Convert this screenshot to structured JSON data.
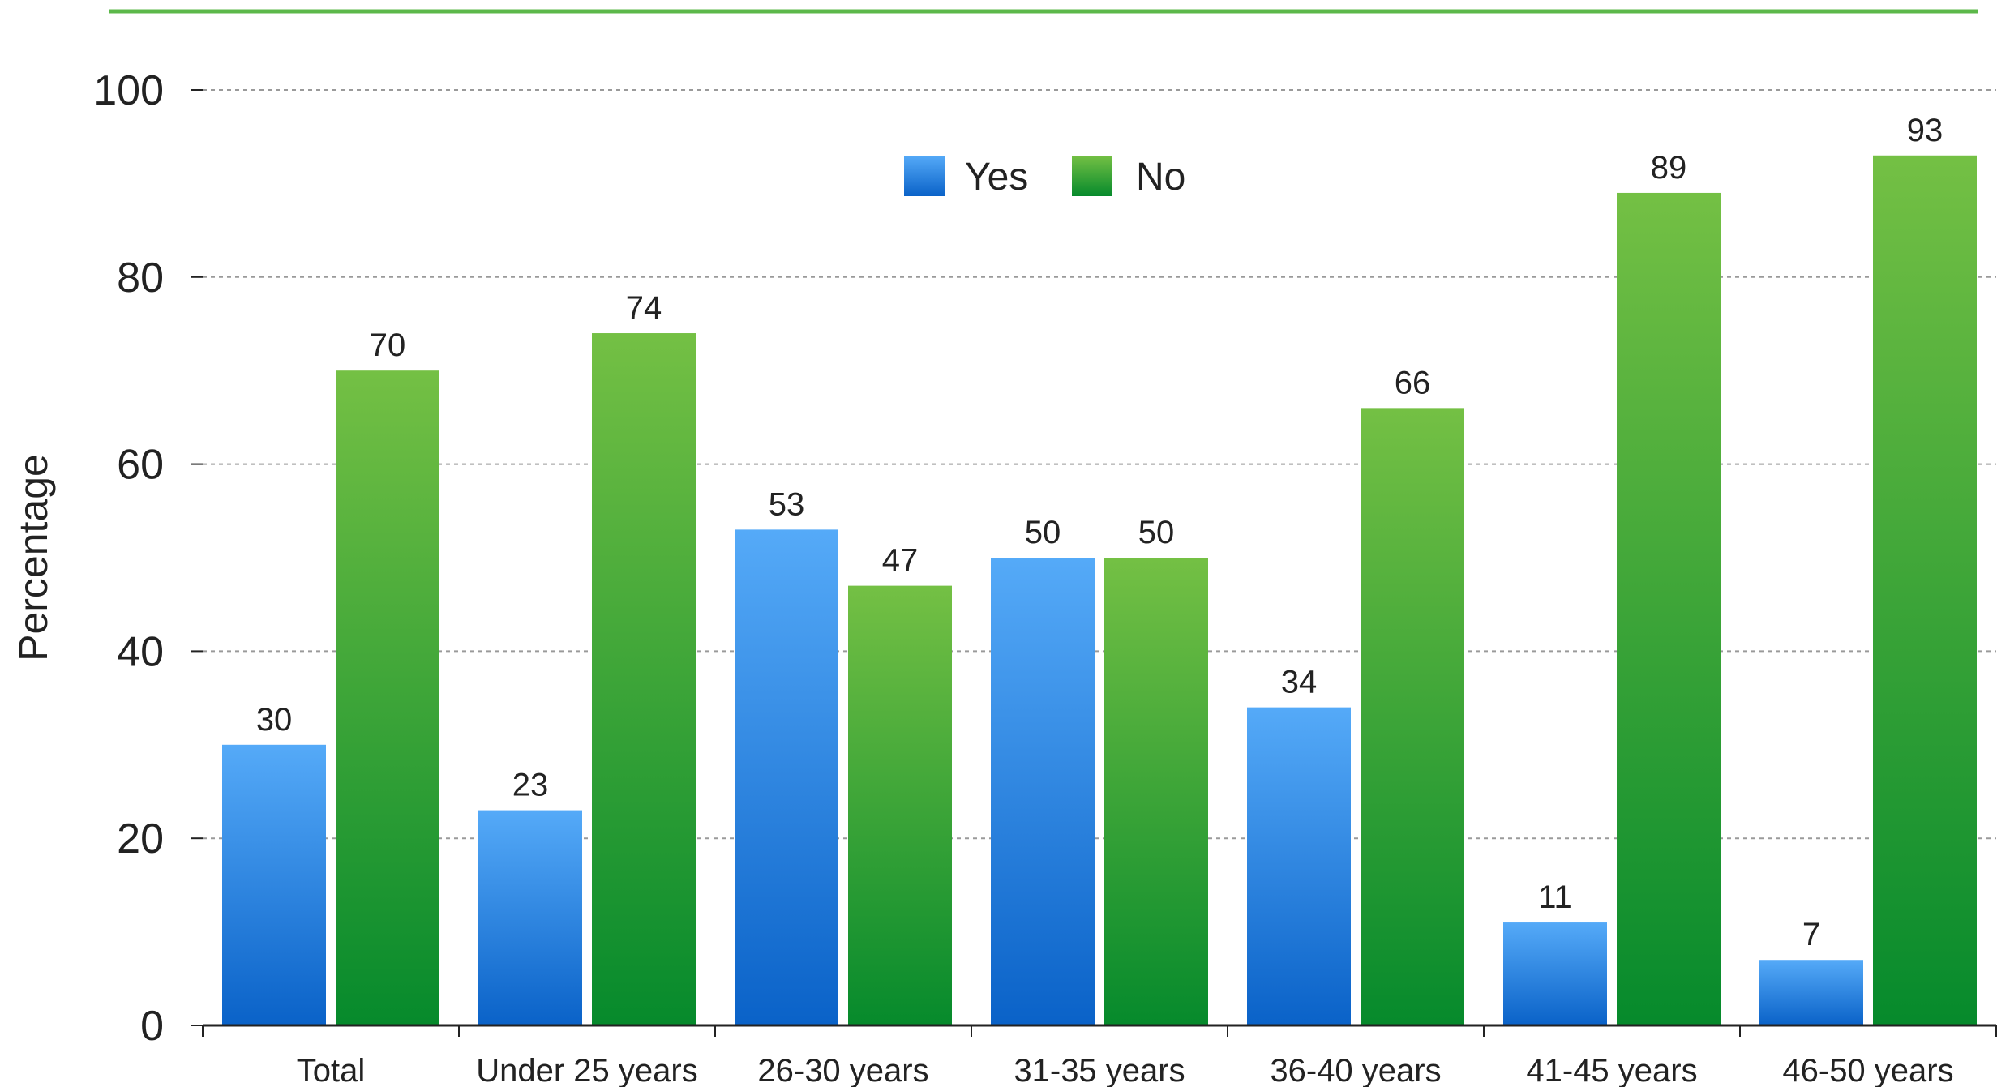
{
  "chart_data": {
    "type": "bar",
    "title": "",
    "xlabel": "",
    "ylabel": "Percentage",
    "ylim": [
      0,
      100
    ],
    "yticks": [
      0,
      20,
      40,
      60,
      80,
      100
    ],
    "grid": true,
    "legend_position": "top-center",
    "categories": [
      "Total",
      "Under 25 years",
      "26-30 years",
      "31-35 years",
      "36-40 years",
      "41-45 years",
      "46-50 years"
    ],
    "series": [
      {
        "name": "Yes",
        "values": [
          30,
          23,
          53,
          50,
          34,
          11,
          7
        ],
        "color_top": "#55aaf8",
        "color_bottom": "#0a62c8"
      },
      {
        "name": "No",
        "values": [
          70,
          74,
          47,
          50,
          66,
          89,
          93
        ],
        "color_top": "#74c044",
        "color_bottom": "#068a2c"
      }
    ],
    "header_rule_color": "#5cb84a"
  }
}
